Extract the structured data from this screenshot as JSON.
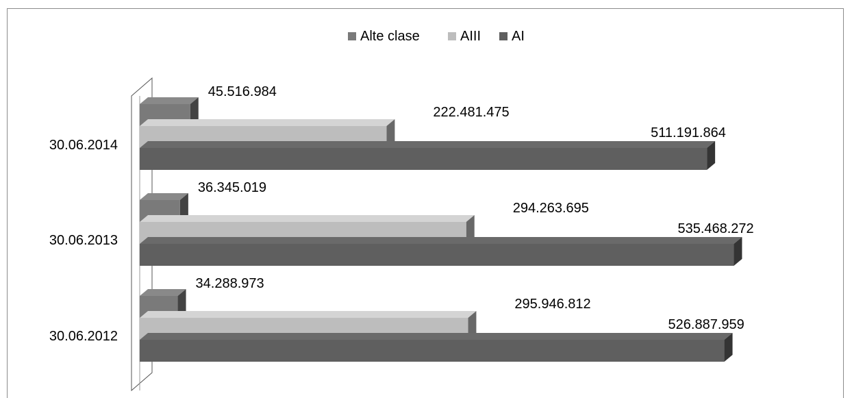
{
  "chart_data": {
    "type": "bar",
    "orientation": "horizontal",
    "categories": [
      "30.06.2014",
      "30.06.2013",
      "30.06.2012"
    ],
    "series": [
      {
        "name": "Alte clase",
        "color": "#7a7a7a",
        "values": [
          45516984,
          36345019,
          34288973
        ],
        "labels": [
          "45.516.984",
          "36.345.019",
          "34.288.973"
        ]
      },
      {
        "name": "AIII",
        "color": "#bdbdbd",
        "values": [
          222481475,
          294263695,
          295946812
        ],
        "labels": [
          "222.481.475",
          "294.263.695",
          "295.946.812"
        ]
      },
      {
        "name": "AI",
        "color": "#5f5f5f",
        "values": [
          511191864,
          535468272,
          526887959
        ],
        "labels": [
          "511.191.864",
          "535.468.272",
          "526.887.959"
        ]
      }
    ],
    "xlim": [
      0,
      600000000
    ],
    "legend_position": "top",
    "grid": false,
    "style": "3d"
  }
}
